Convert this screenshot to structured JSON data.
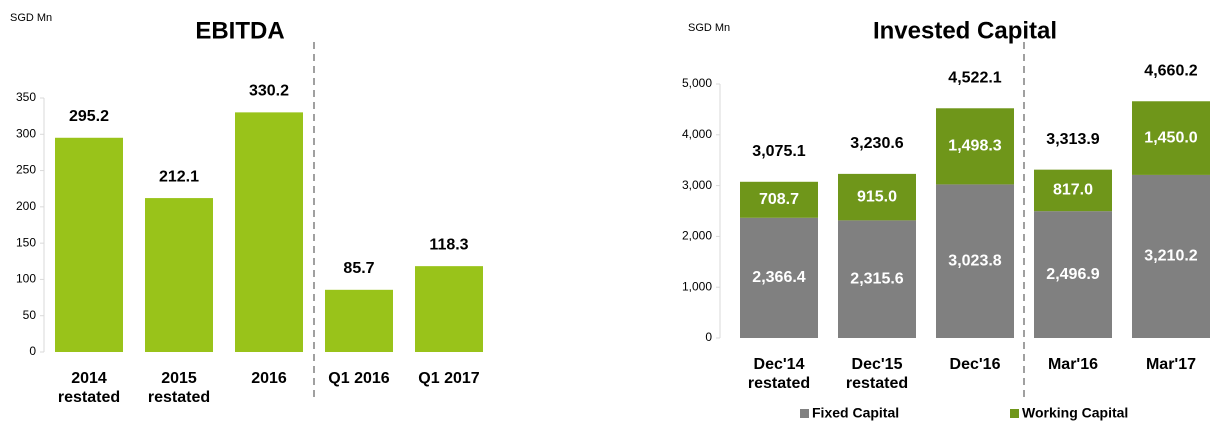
{
  "chart_data": [
    {
      "type": "bar",
      "title": "EBITDA",
      "unit": "SGD Mn",
      "categories": [
        "2014\nrestated",
        "2015\nrestated",
        "2016",
        "Q1 2016",
        "Q1 2017"
      ],
      "values": [
        295.2,
        212.1,
        330.2,
        85.7,
        118.3
      ],
      "color": "#99c31a",
      "ylim": [
        0,
        350
      ],
      "yticks": [
        0,
        50,
        100,
        150,
        200,
        250,
        300,
        350
      ],
      "grid": false
    },
    {
      "type": "stacked_bar",
      "title": "Invested Capital",
      "unit": "SGD Mn",
      "categories": [
        "Dec'14\nrestated",
        "Dec'15\nrestated",
        "Dec'16",
        "Mar'16",
        "Mar'17"
      ],
      "series": [
        {
          "name": "Fixed Capital",
          "color": "#808080",
          "values": [
            2366.4,
            2315.6,
            3023.8,
            2496.9,
            3210.2
          ],
          "value_labels": [
            "2,366.4",
            "2,315.6",
            "3,023.8",
            "2,496.9",
            "3,210.2"
          ]
        },
        {
          "name": "Working Capital",
          "color": "#6f961a",
          "values": [
            708.7,
            915.0,
            1498.3,
            817.0,
            1450.0
          ],
          "value_labels": [
            "708.7",
            "915.0",
            "1,498.3",
            "817.0",
            "1,450.0"
          ]
        }
      ],
      "totals": [
        3075.1,
        3230.6,
        4522.1,
        3313.9,
        4660.2
      ],
      "total_labels": [
        "3,075.1",
        "3,230.6",
        "4,522.1",
        "3,313.9",
        "4,660.2"
      ],
      "ylim": [
        0,
        5000
      ],
      "yticks": [
        0,
        {
          "value": 1000,
          "label": "1,000"
        },
        {
          "value": 2000,
          "label": "2,000"
        },
        {
          "value": 3000,
          "label": "3,000"
        },
        {
          "value": 4000,
          "label": "4,000"
        },
        {
          "value": 5000,
          "label": "5,000"
        }
      ],
      "grid": false
    }
  ]
}
